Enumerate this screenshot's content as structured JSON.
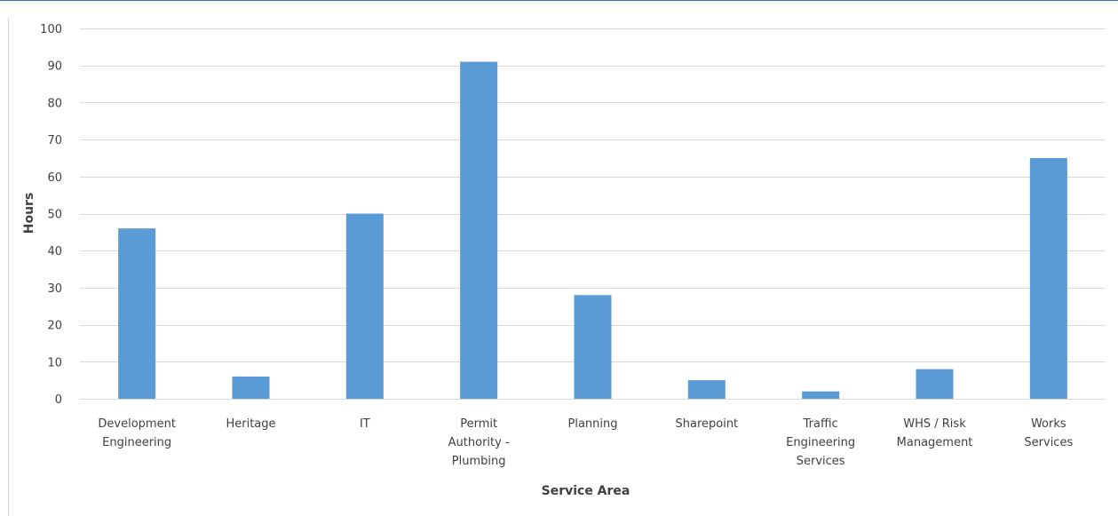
{
  "header": {
    "title": ""
  },
  "colors": {
    "bar": "#5b9bd5",
    "grid": "#d9d9d9",
    "frame": "#d0d0d0",
    "header_rule": "#2e75b6",
    "text": "#404040"
  },
  "chart_data": {
    "type": "bar",
    "title": "",
    "xlabel": "Service Area",
    "ylabel": "Hours",
    "ylim": [
      0,
      100
    ],
    "yticks": [
      0,
      10,
      20,
      30,
      40,
      50,
      60,
      70,
      80,
      90,
      100
    ],
    "grid": true,
    "legend": "none",
    "categories": [
      "Development Engineering",
      "Heritage",
      "IT",
      "Permit Authority - Plumbing",
      "Planning",
      "Sharepoint",
      "Traffic Engineering Services",
      "WHS / Risk Management",
      "Works Services"
    ],
    "category_lines": [
      [
        "Development",
        "Engineering"
      ],
      [
        "Heritage"
      ],
      [
        "IT"
      ],
      [
        "Permit",
        "Authority -",
        "Plumbing"
      ],
      [
        "Planning"
      ],
      [
        "Sharepoint"
      ],
      [
        "Traffic",
        "Engineering",
        "Services"
      ],
      [
        "WHS / Risk",
        "Management"
      ],
      [
        "Works",
        "Services"
      ]
    ],
    "values": [
      46,
      6,
      50,
      91,
      28,
      5,
      2,
      8,
      65
    ]
  }
}
